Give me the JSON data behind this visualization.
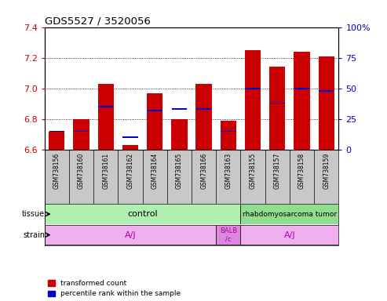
{
  "title": "GDS5527 / 3520056",
  "samples": [
    "GSM738156",
    "GSM738160",
    "GSM738161",
    "GSM738162",
    "GSM738164",
    "GSM738165",
    "GSM738166",
    "GSM738163",
    "GSM738155",
    "GSM738157",
    "GSM738158",
    "GSM738159"
  ],
  "red_values": [
    6.72,
    6.8,
    7.03,
    6.63,
    6.97,
    6.8,
    7.03,
    6.79,
    7.25,
    7.14,
    7.24,
    7.21
  ],
  "blue_values_pct": [
    15,
    15,
    35,
    10,
    32,
    33,
    33,
    15,
    50,
    38,
    50,
    48
  ],
  "y_min": 6.6,
  "y_max": 7.4,
  "y_ticks": [
    6.6,
    6.8,
    7.0,
    7.2,
    7.4
  ],
  "y2_ticks": [
    0,
    25,
    50,
    75,
    100
  ],
  "red_color": "#cc0000",
  "blue_color": "#0000cc",
  "left_tick_color": "#cc0000",
  "right_tick_color": "#0000cc",
  "sample_bg_color": "#c8c8c8",
  "tissue_control_color": "#b0f0b0",
  "tissue_tumor_color": "#90dd90",
  "strain_color": "#f0b0f0",
  "strain_label_color": "#aa00aa",
  "strain_balb_color": "#dd88dd",
  "control_span": [
    0,
    8
  ],
  "tumor_span": [
    8,
    12
  ],
  "strain_aj1_span": [
    0,
    7
  ],
  "strain_balb_span": [
    7,
    8
  ],
  "strain_aj2_span": [
    8,
    12
  ]
}
